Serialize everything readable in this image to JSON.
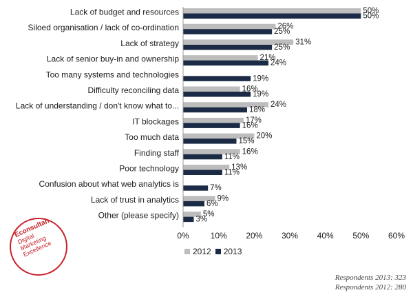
{
  "chart_data": {
    "type": "bar",
    "orientation": "horizontal",
    "categories": [
      "Lack of budget and resources",
      "Siloed organisation / lack of co-ordination",
      "Lack of strategy",
      "Lack of senior buy-in and ownership",
      "Too many systems and technologies",
      "Difficulty reconciling data",
      "Lack of understanding / don't know what to...",
      "IT blockages",
      "Too much data",
      "Finding staff",
      "Poor technology",
      "Confusion about what web analytics is",
      "Lack of trust in analytics",
      "Other (please specify)"
    ],
    "series": [
      {
        "name": "2012",
        "color": "#bdbdbd",
        "values": [
          50,
          26,
          31,
          21,
          null,
          16,
          24,
          17,
          20,
          16,
          13,
          null,
          9,
          5
        ],
        "labels": [
          "50%",
          "26%",
          "31%",
          "21%",
          "",
          "16%",
          "24%",
          "17%",
          "20%",
          "16%",
          "13%",
          "",
          "9%",
          "5%"
        ]
      },
      {
        "name": "2013",
        "color": "#1b2b45",
        "values": [
          50,
          25,
          25,
          24,
          19,
          19,
          18,
          16,
          15,
          11,
          11,
          7,
          6,
          3
        ],
        "labels": [
          "50%",
          "25%",
          "25%",
          "24%",
          "19%",
          "19%",
          "18%",
          "16%",
          "15%",
          "11%",
          "11%",
          "7%",
          "6%",
          "3%"
        ]
      }
    ],
    "xlim": [
      0,
      60
    ],
    "xticks": [
      0,
      10,
      20,
      30,
      40,
      50,
      60
    ],
    "xtick_labels": [
      "0%",
      "10%",
      "20%",
      "30%",
      "40%",
      "50%",
      "60%"
    ],
    "grid": false,
    "legend_position": "bottom"
  },
  "branding": {
    "name": "Econsultancy",
    "tagline_1": "Digital",
    "tagline_2": "Marketing",
    "tagline_3": "Excellence",
    "color": "#c8222c"
  },
  "footer": {
    "respondents_2013": "Respondents 2013: 323",
    "respondents_2012": "Respondents 2012: 280"
  }
}
